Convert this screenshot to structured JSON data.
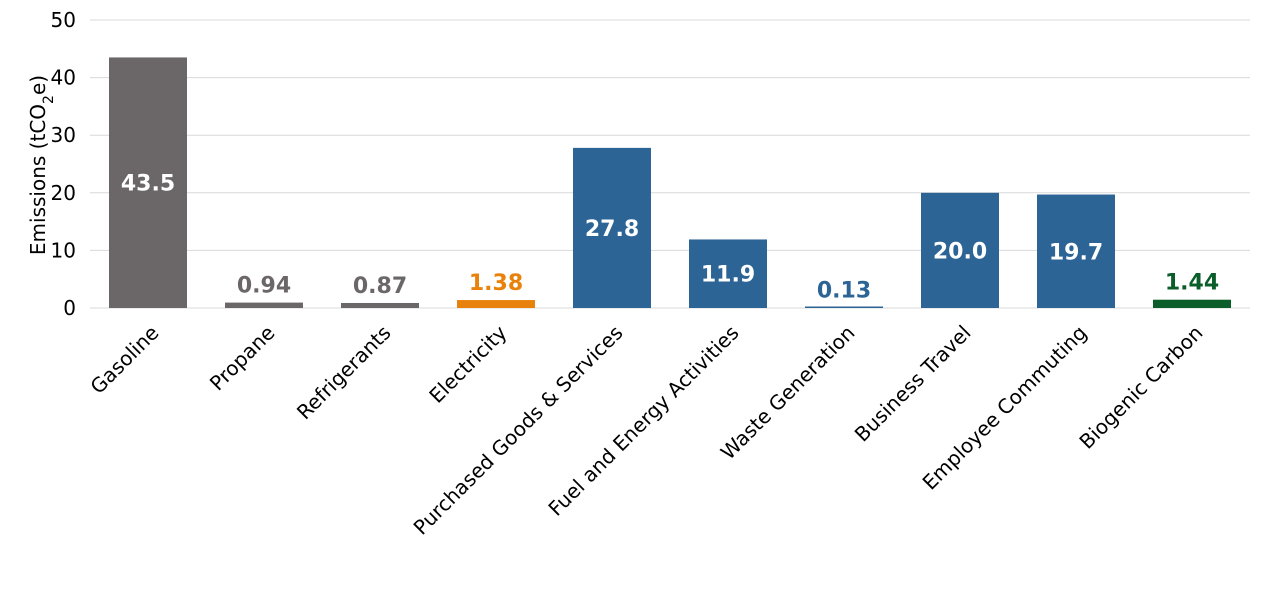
{
  "chart_data": {
    "type": "bar",
    "title": "",
    "xlabel": "",
    "ylabel": "Emissions (tCO",
    "ylabel_subscript": "2",
    "ylabel_suffix": "e)",
    "ylim": [
      0,
      50
    ],
    "yticks": [
      0,
      10,
      20,
      30,
      40,
      50
    ],
    "grid": true,
    "legend": "none",
    "categories": [
      "Gasoline",
      "Propane",
      "Refrigerants",
      "Electricity",
      "Purchased Goods & Services",
      "Fuel and Energy Activities",
      "Waste Generation",
      "Business Travel",
      "Employee Commuting",
      "Biogenic Carbon"
    ],
    "values": [
      43.5,
      0.94,
      0.87,
      1.38,
      27.8,
      11.9,
      0.13,
      20.0,
      19.7,
      1.44
    ],
    "value_labels": [
      "43.5",
      "0.94",
      "0.87",
      "1.38",
      "27.8",
      "11.9",
      "0.13",
      "20.0",
      "19.7",
      "1.44"
    ],
    "colors": [
      "#6b6768",
      "#6b6768",
      "#6b6768",
      "#e8820c",
      "#2c6496",
      "#2c6496",
      "#2c6496",
      "#2c6496",
      "#2c6496",
      "#0b5e2a"
    ],
    "label_inside": [
      true,
      false,
      false,
      false,
      true,
      true,
      false,
      true,
      true,
      false
    ]
  }
}
